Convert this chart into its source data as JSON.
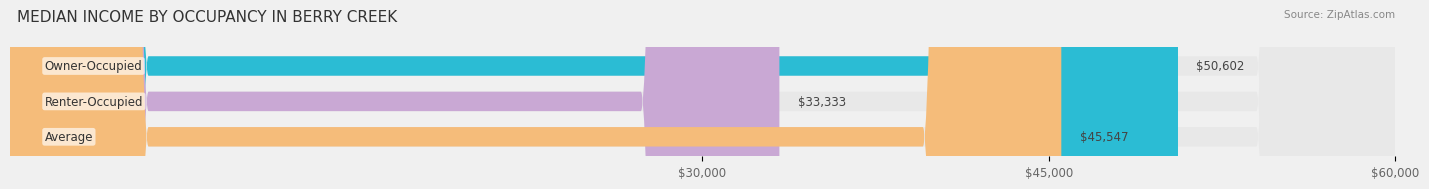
{
  "title": "MEDIAN INCOME BY OCCUPANCY IN BERRY CREEK",
  "source": "Source: ZipAtlas.com",
  "categories": [
    "Owner-Occupied",
    "Renter-Occupied",
    "Average"
  ],
  "values": [
    50602,
    33333,
    45547
  ],
  "bar_colors": [
    "#2bbcd4",
    "#c9a8d4",
    "#f5bc7a"
  ],
  "value_labels": [
    "$50,602",
    "$33,333",
    "$45,547"
  ],
  "xlim": [
    0,
    60000
  ],
  "xticks": [
    30000,
    45000,
    60000
  ],
  "xtick_labels": [
    "$30,000",
    "$45,000",
    "$60,000"
  ],
  "bar_height": 0.55,
  "background_color": "#f0f0f0",
  "bar_bg_color": "#e8e8e8",
  "title_fontsize": 11,
  "label_fontsize": 8.5,
  "value_fontsize": 8.5,
  "tick_fontsize": 8.5
}
